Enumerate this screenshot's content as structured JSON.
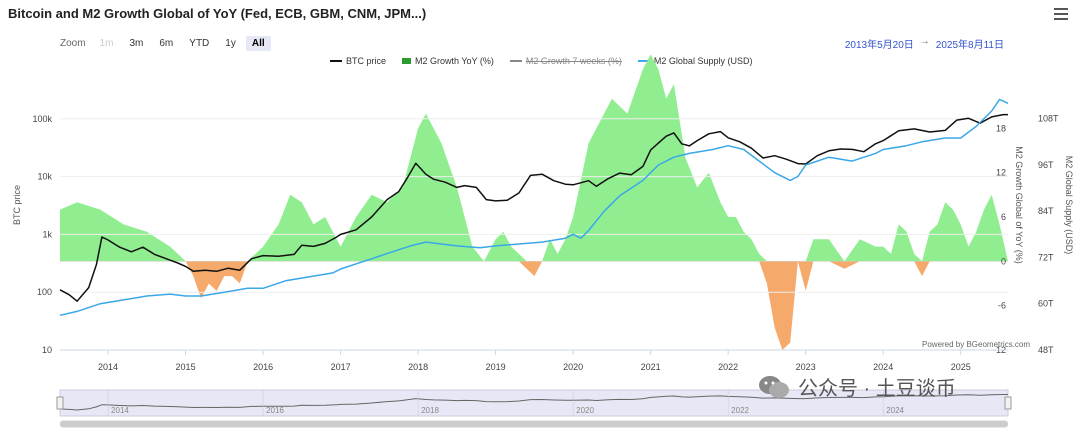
{
  "header": {
    "title": "Bitcoin and M2 Growth Global of YoY (Fed, ECB, GBM, CNM, JPM...)"
  },
  "toolbar": {
    "zoom_label": "Zoom",
    "zoom_buttons": [
      {
        "label": "1m",
        "state": "disabled"
      },
      {
        "label": "3m",
        "state": "normal"
      },
      {
        "label": "6m",
        "state": "normal"
      },
      {
        "label": "YTD",
        "state": "normal"
      },
      {
        "label": "1y",
        "state": "normal"
      },
      {
        "label": "All",
        "state": "active"
      }
    ],
    "range_from": "2013年5月20日",
    "range_arrow": "→",
    "range_to": "2025年8月11日"
  },
  "legend": [
    {
      "name": "BTC price",
      "color": "#111111",
      "shape": "line",
      "visible": true
    },
    {
      "name": "M2 Growth YoY (%)",
      "color": "#2d9a2d",
      "shape": "square",
      "visible": true
    },
    {
      "name": "M2 Growth 7 weeks (%)",
      "color": "#888888",
      "shape": "line",
      "visible": false
    },
    {
      "name": "M2 Global Supply (USD)",
      "color": "#3aa7e8",
      "shape": "line",
      "visible": true
    }
  ],
  "chart_data": {
    "type": "line",
    "x_type": "year",
    "xlim": [
      2013.38,
      2025.61
    ],
    "x_ticks": [
      "2014",
      "2015",
      "2016",
      "2017",
      "2018",
      "2019",
      "2020",
      "2021",
      "2022",
      "2023",
      "2024",
      "2025"
    ],
    "axes": {
      "left": {
        "label": "BTC price",
        "scale": "log",
        "ticks": [
          "10",
          "100",
          "1k",
          "10k",
          "100k"
        ],
        "range": [
          10,
          400000
        ]
      },
      "right_inner": {
        "label": "M2 Growth Global of YoY (%)",
        "ticks": [
          "-12",
          "-6",
          "0",
          "6",
          "12",
          "18"
        ],
        "range": [
          -12,
          24
        ]
      },
      "right_outer": {
        "label": "M2 Global Supply (USD)",
        "ticks": [
          "48T",
          "60T",
          "72T",
          "84T",
          "96T",
          "108T"
        ],
        "range": [
          48,
          117
        ]
      }
    },
    "series": [
      {
        "name": "BTC price",
        "axis": "left",
        "color": "#111111",
        "x": [
          2013.38,
          2013.5,
          2013.6,
          2013.75,
          2013.85,
          2013.92,
          2014.0,
          2014.15,
          2014.3,
          2014.45,
          2014.6,
          2014.75,
          2014.9,
          2015.0,
          2015.1,
          2015.25,
          2015.4,
          2015.55,
          2015.7,
          2015.85,
          2016.0,
          2016.2,
          2016.4,
          2016.5,
          2016.65,
          2016.8,
          2016.95,
          2017.0,
          2017.2,
          2017.4,
          2017.6,
          2017.75,
          2017.85,
          2017.97,
          2018.1,
          2018.2,
          2018.35,
          2018.5,
          2018.6,
          2018.75,
          2018.88,
          2019.0,
          2019.15,
          2019.3,
          2019.45,
          2019.6,
          2019.75,
          2019.9,
          2020.0,
          2020.2,
          2020.3,
          2020.45,
          2020.6,
          2020.75,
          2020.9,
          2021.0,
          2021.1,
          2021.2,
          2021.3,
          2021.4,
          2021.5,
          2021.6,
          2021.75,
          2021.9,
          2022.0,
          2022.15,
          2022.3,
          2022.45,
          2022.6,
          2022.75,
          2022.9,
          2023.0,
          2023.15,
          2023.3,
          2023.45,
          2023.6,
          2023.75,
          2023.9,
          2024.0,
          2024.2,
          2024.4,
          2024.6,
          2024.8,
          2024.95,
          2025.1,
          2025.25,
          2025.4,
          2025.55,
          2025.61
        ],
        "y": [
          110,
          90,
          70,
          120,
          300,
          900,
          800,
          600,
          500,
          600,
          450,
          380,
          320,
          280,
          230,
          240,
          230,
          260,
          240,
          380,
          430,
          420,
          450,
          650,
          620,
          700,
          900,
          1000,
          1200,
          2000,
          4000,
          5500,
          9000,
          17000,
          11000,
          9000,
          8000,
          6500,
          7000,
          6500,
          4000,
          3800,
          3900,
          5200,
          10500,
          11000,
          8500,
          7400,
          7200,
          8500,
          6800,
          9200,
          11500,
          10800,
          15000,
          29000,
          38000,
          50000,
          57000,
          37000,
          34000,
          42000,
          55000,
          60000,
          47000,
          40000,
          31000,
          21000,
          23000,
          20000,
          16800,
          16500,
          23000,
          28000,
          30000,
          29500,
          27000,
          37000,
          42000,
          62000,
          67000,
          59000,
          63000,
          95000,
          102000,
          84000,
          108000,
          118000,
          118000
        ]
      },
      {
        "name": "M2 Global Supply (USD)",
        "axis": "right_outer",
        "color": "#3aa7e8",
        "x": [
          2013.38,
          2013.6,
          2013.9,
          2014.2,
          2014.5,
          2014.8,
          2015.0,
          2015.2,
          2015.5,
          2015.8,
          2016.0,
          2016.3,
          2016.6,
          2016.9,
          2017.0,
          2017.3,
          2017.6,
          2017.9,
          2018.1,
          2018.3,
          2018.5,
          2018.8,
          2019.0,
          2019.3,
          2019.6,
          2019.9,
          2020.0,
          2020.1,
          2020.2,
          2020.4,
          2020.6,
          2020.9,
          2021.1,
          2021.3,
          2021.5,
          2021.8,
          2022.0,
          2022.2,
          2022.4,
          2022.6,
          2022.8,
          2022.9,
          2023.0,
          2023.3,
          2023.6,
          2023.9,
          2024.0,
          2024.3,
          2024.5,
          2024.8,
          2025.0,
          2025.2,
          2025.4,
          2025.5,
          2025.61
        ],
        "y": [
          57,
          58,
          60,
          61,
          62,
          62.5,
          62,
          62,
          63,
          64,
          64,
          66,
          67,
          68,
          69,
          71,
          73,
          75,
          76,
          75.5,
          75,
          74.5,
          75,
          75.5,
          76,
          77,
          78,
          77,
          79,
          84,
          88,
          92,
          96,
          98,
          99,
          100,
          101,
          100,
          97,
          94,
          92,
          93,
          96,
          98,
          97,
          99,
          100,
          101,
          102,
          103,
          103,
          106,
          110,
          113,
          112
        ]
      },
      {
        "name": "M2 Growth YoY (%)",
        "axis": "right_inner",
        "color": "#90ee90",
        "type": "area",
        "x": [
          2013.38,
          2013.6,
          2013.9,
          2014.2,
          2014.5,
          2014.8,
          2015.0,
          2015.1,
          2015.2,
          2015.3,
          2015.4,
          2015.5,
          2015.6,
          2015.7,
          2015.8,
          2016.0,
          2016.2,
          2016.35,
          2016.5,
          2016.65,
          2016.8,
          2016.95,
          2017.0,
          2017.2,
          2017.4,
          2017.6,
          2017.8,
          2018.0,
          2018.1,
          2018.3,
          2018.5,
          2018.7,
          2018.85,
          2019.0,
          2019.1,
          2019.2,
          2019.3,
          2019.4,
          2019.5,
          2019.6,
          2019.7,
          2019.8,
          2019.9,
          2020.0,
          2020.2,
          2020.3,
          2020.5,
          2020.7,
          2020.9,
          2021.0,
          2021.1,
          2021.2,
          2021.3,
          2021.45,
          2021.6,
          2021.75,
          2021.9,
          2022.0,
          2022.1,
          2022.2,
          2022.3,
          2022.4,
          2022.5,
          2022.6,
          2022.7,
          2022.8,
          2022.9,
          2023.0,
          2023.1,
          2023.3,
          2023.5,
          2023.7,
          2023.9,
          2024.0,
          2024.1,
          2024.2,
          2024.3,
          2024.4,
          2024.5,
          2024.6,
          2024.7,
          2024.8,
          2024.9,
          2025.0,
          2025.1,
          2025.2,
          2025.3,
          2025.4,
          2025.5,
          2025.61
        ],
        "y": [
          7,
          8,
          7,
          5,
          4,
          2,
          0,
          -2,
          -5,
          -3,
          -4,
          -2,
          -2,
          -3,
          0,
          2,
          5,
          9,
          8,
          5,
          6,
          3,
          2,
          6,
          9,
          8,
          10,
          18,
          20,
          16,
          10,
          2,
          0,
          3,
          4,
          2,
          1,
          -1,
          -2,
          0,
          3,
          1,
          3,
          6,
          16,
          18,
          22,
          20,
          26,
          28,
          26,
          22,
          24,
          14,
          10,
          12,
          8,
          6,
          6,
          4,
          3,
          1,
          -3,
          -9,
          -12,
          -11,
          0,
          -4,
          3,
          3,
          -1,
          3,
          2,
          2,
          1,
          5,
          4,
          1,
          -2,
          4,
          5,
          8,
          7,
          5,
          2,
          4,
          7,
          9,
          5,
          0
        ]
      }
    ],
    "series_hidden": [
      {
        "name": "M2 Growth 7 weeks (%)"
      }
    ],
    "credit": "Powered by BGeometrics.com"
  },
  "navigator": {
    "ticks": [
      "2014",
      "2016",
      "2018",
      "2020",
      "2022",
      "2024"
    ]
  },
  "watermark": {
    "text": "公众号 · 土豆谈币",
    "icon": "wechat-icon"
  },
  "colors": {
    "positive_fill": "#90ee90",
    "negative_fill": "#f5a96a",
    "btc_line": "#111111",
    "m2_line": "#3aa7e8",
    "range_text": "#3355cc"
  }
}
